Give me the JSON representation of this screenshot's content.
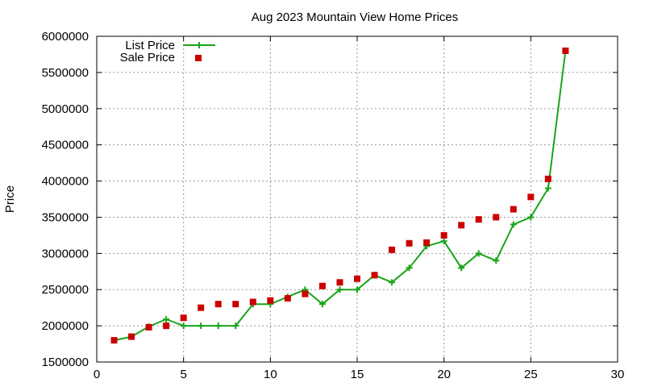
{
  "chart_data": {
    "type": "line",
    "title": "Aug 2023 Mountain View Home Prices",
    "xlabel": "",
    "ylabel": "Price",
    "xlim": [
      0,
      30
    ],
    "ylim": [
      1500000,
      6000000
    ],
    "x_ticks": [
      0,
      5,
      10,
      15,
      20,
      25,
      30
    ],
    "y_ticks": [
      1500000,
      2000000,
      2500000,
      3000000,
      3500000,
      4000000,
      4500000,
      5000000,
      5500000,
      6000000
    ],
    "grid": true,
    "legend_position": "top-left",
    "series": [
      {
        "name": "List Price",
        "style": "line-with-plus-markers",
        "color": "#1aa41a",
        "x": [
          1,
          2,
          3,
          4,
          5,
          6,
          7,
          8,
          9,
          10,
          11,
          12,
          13,
          14,
          15,
          16,
          17,
          18,
          19,
          20,
          21,
          22,
          23,
          24,
          25,
          26,
          27
        ],
        "values": [
          1800000,
          1850000,
          1990000,
          2090000,
          2000000,
          2000000,
          2000000,
          2000000,
          2300000,
          2300000,
          2400000,
          2500000,
          2300000,
          2500000,
          2500000,
          2700000,
          2600000,
          2800000,
          3100000,
          3170000,
          2800000,
          3000000,
          2900000,
          3400000,
          3500000,
          3900000,
          5800000
        ]
      },
      {
        "name": "Sale Price",
        "style": "square-markers",
        "color": "#cc0000",
        "x": [
          1,
          2,
          3,
          4,
          5,
          6,
          7,
          8,
          9,
          10,
          11,
          12,
          13,
          14,
          15,
          16,
          17,
          18,
          19,
          20,
          21,
          22,
          23,
          24,
          25,
          26,
          27
        ],
        "values": [
          1800000,
          1850000,
          1980000,
          2000000,
          2110000,
          2250000,
          2300000,
          2300000,
          2330000,
          2350000,
          2380000,
          2440000,
          2550000,
          2600000,
          2650000,
          2700000,
          3050000,
          3140000,
          3150000,
          3250000,
          3390000,
          3470000,
          3500000,
          3610000,
          3780000,
          4030000,
          5800000
        ]
      }
    ]
  }
}
